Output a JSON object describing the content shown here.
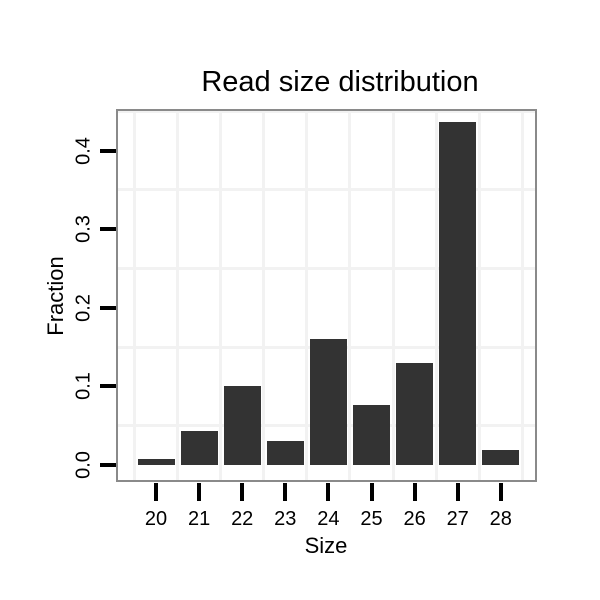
{
  "chart_data": {
    "type": "bar",
    "title": "Read size distribution",
    "xlabel": "Size",
    "ylabel": "Fraction",
    "categories": [
      "20",
      "21",
      "22",
      "23",
      "24",
      "25",
      "26",
      "27",
      "28"
    ],
    "values": [
      0.008,
      0.043,
      0.1,
      0.031,
      0.16,
      0.076,
      0.13,
      0.436,
      0.019
    ],
    "y_tick_labels": [
      "0.0",
      "0.1",
      "0.2",
      "0.3",
      "0.4"
    ],
    "y_tick_values": [
      0.0,
      0.1,
      0.2,
      0.3,
      0.4
    ],
    "ylim": [
      0,
      0.453
    ],
    "grid": "minor gridlines only (between categories on x, 0.05 offsets on y)",
    "legend": "none",
    "colors": {
      "bar_fill": "#333333",
      "panel_border": "#8a8a8a",
      "gridline": "#f2f2f2",
      "tick": "#000000",
      "text": "#000000",
      "panel_background": "#ffffff",
      "figure_background": "#ffffff"
    }
  }
}
